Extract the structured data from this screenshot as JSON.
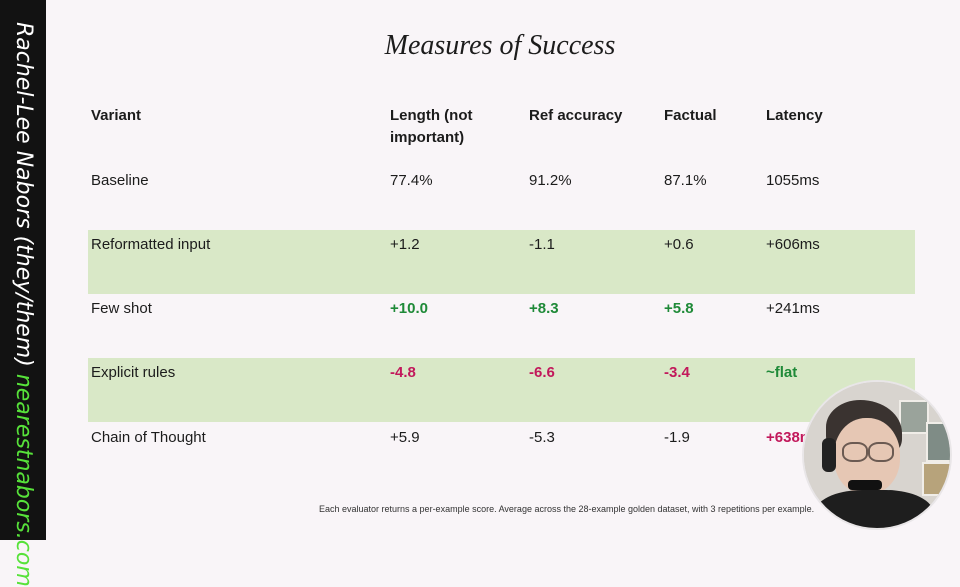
{
  "sidebar": {
    "name": "Rachel-Lee Nabors (they/them) ",
    "site": "nearestnabors.com"
  },
  "slide": {
    "title": "Measures of Success",
    "footnote": "Each evaluator returns a per-example score. Average across the 28-example golden dataset, with 3 repetitions per example."
  },
  "table": {
    "headers": [
      "Variant",
      "Length (not important)",
      "Ref accuracy",
      "Factual",
      "Latency"
    ],
    "rows": [
      [
        "Baseline",
        "77.4%",
        "91.2%",
        "87.1%",
        "1055ms"
      ],
      [
        "Reformatted input",
        "+1.2",
        "-1.1",
        "+0.6",
        "+606ms"
      ],
      [
        "Few shot",
        "+10.0",
        "+8.3",
        "+5.8",
        "+241ms"
      ],
      [
        "Explicit rules",
        "-4.8",
        "-6.6",
        "-3.4",
        "~flat"
      ],
      [
        "Chain of Thought",
        "+5.9",
        "-5.3",
        "-1.9",
        "+638ms"
      ]
    ]
  },
  "colors": {
    "highlight_row": "#d9e8c7",
    "positive": "#1f8a38",
    "negative": "#c2185b",
    "sidebar_site": "#57e23a"
  }
}
